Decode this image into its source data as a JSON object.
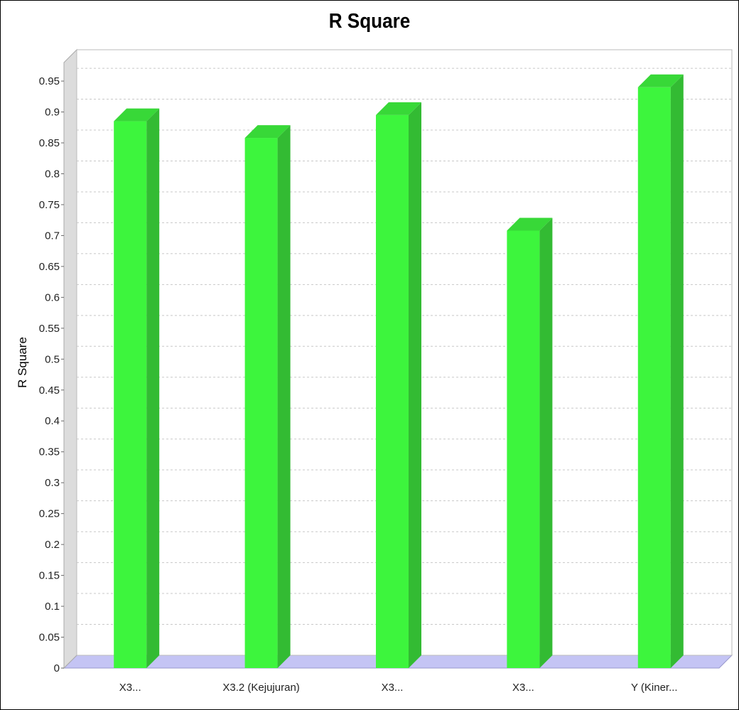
{
  "chart_data": {
    "type": "bar",
    "title": "R Square",
    "xlabel": "",
    "ylabel": "R Square",
    "categories": [
      "X3...",
      "X3.2 (Kejujuran)",
      "X3...",
      "X3...",
      "Y (Kiner..."
    ],
    "values": [
      0.885,
      0.858,
      0.895,
      0.708,
      0.94
    ],
    "ylim": [
      0,
      0.98
    ],
    "yticks": [
      0,
      0.05,
      0.1,
      0.15,
      0.2,
      0.25,
      0.3,
      0.35,
      0.4,
      0.45,
      0.5,
      0.55,
      0.6,
      0.65,
      0.7,
      0.75,
      0.8,
      0.85,
      0.9,
      0.95
    ],
    "ytick_labels": [
      "0",
      "0.05",
      "0.1",
      "0.15",
      "0.2",
      "0.25",
      "0.3",
      "0.35",
      "0.4",
      "0.45",
      "0.5",
      "0.55",
      "0.6",
      "0.65",
      "0.7",
      "0.75",
      "0.8",
      "0.85",
      "0.9",
      "0.95"
    ],
    "grid": true,
    "bar_style": "3d",
    "colors": {
      "bar_front": "#3df53d",
      "bar_side": "#33bb33",
      "bar_top": "#38d838",
      "floor": "#c4c4f4",
      "wall": "#dcdcdc",
      "gridline": "#c8c8c8"
    }
  }
}
